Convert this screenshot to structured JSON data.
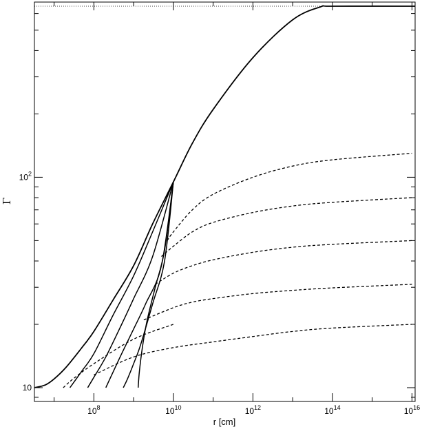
{
  "chart_data": {
    "type": "line",
    "title": "",
    "xlabel": "r [cm]",
    "ylabel": "Γ",
    "x_scale": "log",
    "y_scale": "log",
    "xlim": [
      3200000.0,
      1.2e+16
    ],
    "ylim": [
      8.6,
      680
    ],
    "x_ticks": [
      {
        "value": 100000000.0,
        "base": "10",
        "exp": "8"
      },
      {
        "value": 10000000000.0,
        "base": "10",
        "exp": "10"
      },
      {
        "value": 1000000000000.0,
        "base": "10",
        "exp": "12"
      },
      {
        "value": 100000000000000.0,
        "base": "10",
        "exp": "14"
      },
      {
        "value": 1e+16,
        "base": "10",
        "exp": "16"
      }
    ],
    "y_ticks": [
      {
        "value": 10,
        "base": "10",
        "exp": ""
      },
      {
        "value": 100,
        "base": "10",
        "exp": "2"
      }
    ],
    "grid": false,
    "legend": "none",
    "reference_line": {
      "style": "dotted",
      "y": 650,
      "x": [
        3200000.0,
        1.2e+16
      ]
    },
    "series": [
      {
        "style": "solid",
        "points": [
          [
            3200000.0,
            10
          ],
          [
            6000000.0,
            10.3
          ],
          [
            10000000.0,
            11
          ],
          [
            20000000.0,
            12.5
          ],
          [
            50000000.0,
            15.5
          ],
          [
            100000000.0,
            18.5
          ],
          [
            300000000.0,
            26
          ],
          [
            1000000000.0,
            38
          ],
          [
            3000000000.0,
            60
          ],
          [
            10000000000.0,
            95
          ],
          [
            30000000000.0,
            145
          ],
          [
            100000000000.0,
            210
          ],
          [
            1000000000000.0,
            370
          ],
          [
            10000000000000.0,
            560
          ],
          [
            50000000000000.0,
            645
          ],
          [
            100000000000000.0,
            650
          ],
          [
            1.2e+16,
            650
          ]
        ]
      },
      {
        "style": "solid",
        "points": [
          [
            25000000.0,
            10
          ],
          [
            50000000.0,
            12
          ],
          [
            100000000.0,
            14.5
          ],
          [
            300000000.0,
            22
          ],
          [
            1000000000.0,
            34
          ],
          [
            3000000000.0,
            55
          ],
          [
            10000000000.0,
            95
          ]
        ]
      },
      {
        "style": "solid",
        "points": [
          [
            70000000.0,
            10
          ],
          [
            100000000.0,
            11.2
          ],
          [
            200000000.0,
            14
          ],
          [
            500000000.0,
            20
          ],
          [
            1000000000.0,
            26.5
          ],
          [
            3000000000.0,
            42
          ],
          [
            10000000000.0,
            95
          ]
        ]
      },
      {
        "style": "solid",
        "points": [
          [
            200000000.0,
            10
          ],
          [
            300000000.0,
            11.8
          ],
          [
            500000000.0,
            14.5
          ],
          [
            1000000000.0,
            19
          ],
          [
            2000000000.0,
            25
          ],
          [
            5000000000.0,
            38
          ],
          [
            10000000000.0,
            95
          ]
        ]
      },
      {
        "style": "solid",
        "points": [
          [
            550000000.0,
            10
          ],
          [
            700000000.0,
            11
          ],
          [
            1000000000.0,
            13
          ],
          [
            1500000000.0,
            16
          ],
          [
            3000000000.0,
            25
          ],
          [
            6000000000.0,
            40
          ],
          [
            10000000000.0,
            95
          ]
        ]
      },
      {
        "style": "solid",
        "points": [
          [
            1300000000.0,
            10
          ],
          [
            1400000000.0,
            12
          ],
          [
            1700000000.0,
            16
          ],
          [
            2200000000.0,
            21
          ],
          [
            3500000000.0,
            30
          ],
          [
            6000000000.0,
            45
          ],
          [
            10000000000.0,
            95
          ]
        ]
      },
      {
        "style": "dashed",
        "points": [
          [
            7000000000.0,
            50
          ],
          [
            10000000000.0,
            55
          ],
          [
            30000000000.0,
            70
          ],
          [
            100000000000.0,
            83
          ],
          [
            1000000000000.0,
            100
          ],
          [
            10000000000000.0,
            113
          ],
          [
            100000000000000.0,
            121
          ],
          [
            1e+16,
            130
          ]
        ]
      },
      {
        "style": "dashed",
        "points": [
          [
            5000000000.0,
            42
          ],
          [
            10000000000.0,
            47
          ],
          [
            30000000000.0,
            55
          ],
          [
            100000000000.0,
            61
          ],
          [
            1000000000000.0,
            68
          ],
          [
            10000000000000.0,
            73
          ],
          [
            100000000000000.0,
            76
          ],
          [
            1e+16,
            80
          ]
        ]
      },
      {
        "style": "dashed",
        "points": [
          [
            3500000000.0,
            31
          ],
          [
            10000000000.0,
            35
          ],
          [
            30000000000.0,
            38
          ],
          [
            100000000000.0,
            40.5
          ],
          [
            1000000000000.0,
            44
          ],
          [
            10000000000000.0,
            46.5
          ],
          [
            100000000000000.0,
            48
          ],
          [
            1e+16,
            50
          ]
        ]
      },
      {
        "style": "dashed",
        "points": [
          [
            1800000000.0,
            21
          ],
          [
            10000000000.0,
            24
          ],
          [
            30000000000.0,
            25.5
          ],
          [
            100000000000.0,
            26.5
          ],
          [
            1000000000000.0,
            28
          ],
          [
            10000000000000.0,
            29
          ],
          [
            100000000000000.0,
            29.8
          ],
          [
            1e+16,
            31
          ]
        ]
      },
      {
        "style": "dashed",
        "points": [
          [
            100000000.0,
            11.5
          ],
          [
            1000000000.0,
            14
          ],
          [
            10000000000.0,
            15.5
          ],
          [
            100000000000.0,
            16.5
          ],
          [
            1000000000000.0,
            17.5
          ],
          [
            10000000000000.0,
            18.5
          ],
          [
            100000000000000.0,
            19.2
          ],
          [
            1e+16,
            20
          ]
        ]
      },
      {
        "style": "dashed",
        "points": [
          [
            17000000.0,
            10
          ],
          [
            30000000.0,
            11
          ],
          [
            100000000.0,
            13
          ],
          [
            1000000000.0,
            17
          ],
          [
            10000000000.0,
            20
          ]
        ]
      }
    ]
  }
}
